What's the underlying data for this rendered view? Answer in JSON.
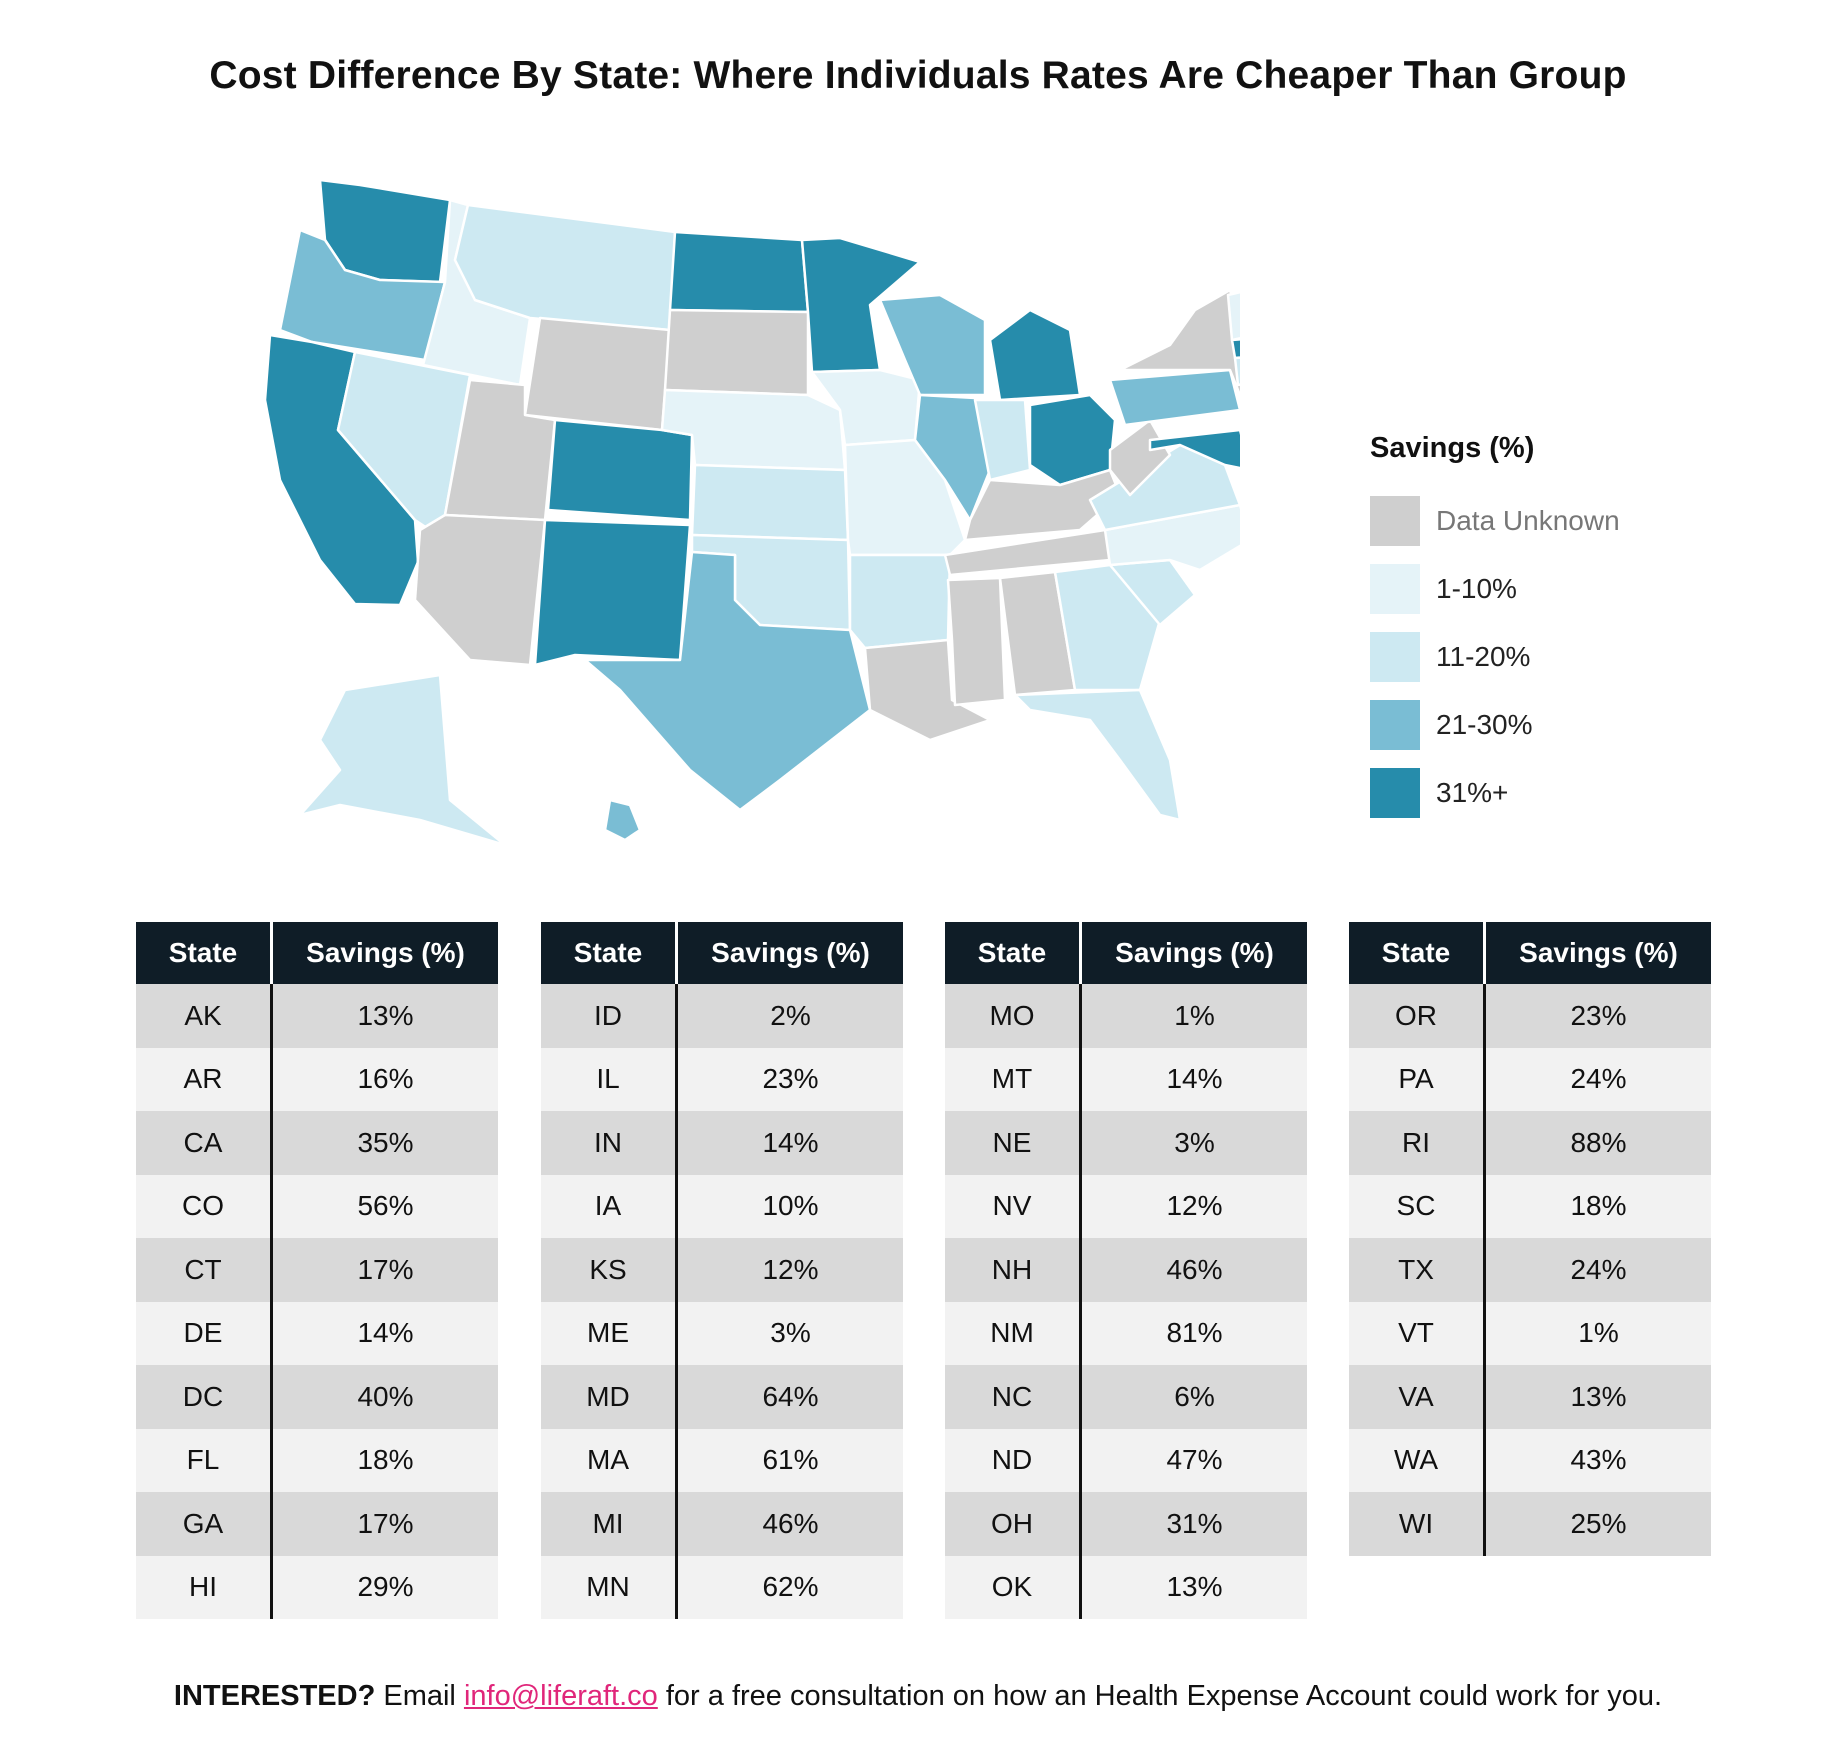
{
  "title": "Cost Difference By State: Where Individuals Rates Are Cheaper Than Group",
  "colors": {
    "unknown": "#cfcfcf",
    "1-10": "#e5f3f8",
    "11-20": "#cde9f2",
    "21-30": "#7abdd4",
    "31+": "#268cab"
  },
  "legend": {
    "title": "Savings (%)",
    "items": [
      {
        "label": "Data Unknown",
        "key": "unknown"
      },
      {
        "label": "1-10%",
        "key": "1-10"
      },
      {
        "label": "11-20%",
        "key": "11-20"
      },
      {
        "label": "21-30%",
        "key": "21-30"
      },
      {
        "label": "31%+",
        "key": "31+"
      }
    ]
  },
  "map_states": {
    "WA": "31+",
    "OR": "21-30",
    "CA": "31+",
    "ID": "1-10",
    "NV": "11-20",
    "MT": "11-20",
    "WY": "unknown",
    "UT": "unknown",
    "AZ": "unknown",
    "CO": "31+",
    "NM": "31+",
    "ND": "31+",
    "SD": "unknown",
    "NE": "1-10",
    "KS": "11-20",
    "OK": "11-20",
    "TX": "21-30",
    "MN": "31+",
    "IA": "1-10",
    "MO": "1-10",
    "AR": "11-20",
    "LA": "unknown",
    "WI": "21-30",
    "IL": "21-30",
    "MI": "31+",
    "IN": "11-20",
    "OH": "31+",
    "KY": "unknown",
    "TN": "unknown",
    "MS": "unknown",
    "AL": "unknown",
    "GA": "11-20",
    "FL": "11-20",
    "SC": "11-20",
    "NC": "1-10",
    "VA": "11-20",
    "WV": "unknown",
    "PA": "21-30",
    "NY": "unknown",
    "NJ": "unknown",
    "DE": "11-20",
    "MD": "31+",
    "VT": "1-10",
    "NH": "31+",
    "ME": "1-10",
    "MA": "31+",
    "CT": "11-20",
    "RI": "31+",
    "AK": "11-20",
    "HI": "21-30"
  },
  "table_headers": {
    "state": "State",
    "savings": "Savings (%)"
  },
  "tables": [
    [
      [
        "AK",
        "13%"
      ],
      [
        "AR",
        "16%"
      ],
      [
        "CA",
        "35%"
      ],
      [
        "CO",
        "56%"
      ],
      [
        "CT",
        "17%"
      ],
      [
        "DE",
        "14%"
      ],
      [
        "DC",
        "40%"
      ],
      [
        "FL",
        "18%"
      ],
      [
        "GA",
        "17%"
      ],
      [
        "HI",
        "29%"
      ]
    ],
    [
      [
        "ID",
        "2%"
      ],
      [
        "IL",
        "23%"
      ],
      [
        "IN",
        "14%"
      ],
      [
        "IA",
        "10%"
      ],
      [
        "KS",
        "12%"
      ],
      [
        "ME",
        "3%"
      ],
      [
        "MD",
        "64%"
      ],
      [
        "MA",
        "61%"
      ],
      [
        "MI",
        "46%"
      ],
      [
        "MN",
        "62%"
      ]
    ],
    [
      [
        "MO",
        "1%"
      ],
      [
        "MT",
        "14%"
      ],
      [
        "NE",
        "3%"
      ],
      [
        "NV",
        "12%"
      ],
      [
        "NH",
        "46%"
      ],
      [
        "NM",
        "81%"
      ],
      [
        "NC",
        "6%"
      ],
      [
        "ND",
        "47%"
      ],
      [
        "OH",
        "31%"
      ],
      [
        "OK",
        "13%"
      ]
    ],
    [
      [
        "OR",
        "23%"
      ],
      [
        "PA",
        "24%"
      ],
      [
        "RI",
        "88%"
      ],
      [
        "SC",
        "18%"
      ],
      [
        "TX",
        "24%"
      ],
      [
        "VT",
        "1%"
      ],
      [
        "VA",
        "13%"
      ],
      [
        "WA",
        "43%"
      ],
      [
        "WI",
        "25%"
      ]
    ]
  ],
  "footer": {
    "lead": "INTERESTED?",
    "pre": " Email ",
    "email": "info@liferaft.co",
    "post": " for a free consultation on how an Health Expense Account could work for you."
  }
}
